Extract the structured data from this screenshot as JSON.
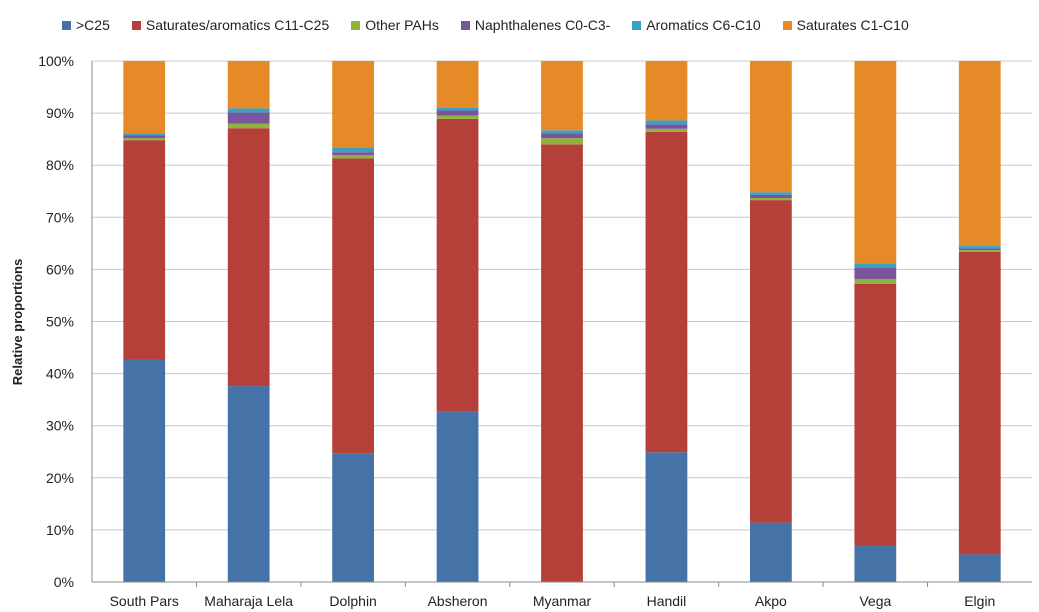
{
  "chart_data": {
    "type": "bar",
    "stacked": true,
    "normalized": true,
    "title": "",
    "xlabel": "",
    "ylabel": "Relative proportions",
    "ylim": [
      0,
      100
    ],
    "yticks": [
      "0%",
      "10%",
      "20%",
      "30%",
      "40%",
      "50%",
      "60%",
      "70%",
      "80%",
      "90%",
      "100%"
    ],
    "grid": true,
    "legend_position": "top",
    "categories": [
      "South Pars",
      "Maharaja Lela",
      "Dolphin",
      "Absheron",
      "Myanmar",
      "Handil",
      "Akpo",
      "Vega",
      "Elgin"
    ],
    "series": [
      {
        "name": ">C25",
        "color": "#4572A7",
        "values": [
          42.7,
          37.6,
          24.7,
          32.7,
          0.0,
          24.9,
          11.4,
          6.9,
          5.3
        ]
      },
      {
        "name": "Saturates/aromatics C11-C25",
        "color": "#B5403A",
        "values": [
          42.1,
          49.5,
          56.6,
          56.2,
          84.0,
          61.5,
          61.9,
          50.3,
          58.1
        ]
      },
      {
        "name": "Other PAHs",
        "color": "#8FB23D",
        "values": [
          0.4,
          0.9,
          0.6,
          0.6,
          1.2,
          0.6,
          0.4,
          0.9,
          0.3
        ]
      },
      {
        "name": "Naphthalenes C0-C3-",
        "color": "#7B559C",
        "values": [
          0.5,
          2.1,
          0.6,
          1.0,
          0.9,
          0.8,
          0.6,
          2.3,
          0.3
        ]
      },
      {
        "name": "Aromatics C6-C10",
        "color": "#3C9FC4",
        "values": [
          0.4,
          0.8,
          0.8,
          0.6,
          0.6,
          0.8,
          0.5,
          0.8,
          0.5
        ]
      },
      {
        "name": "Saturates C1-C10",
        "color": "#E58A26",
        "values": [
          13.9,
          9.1,
          16.7,
          8.9,
          13.3,
          11.4,
          25.2,
          38.8,
          35.5
        ]
      }
    ]
  }
}
